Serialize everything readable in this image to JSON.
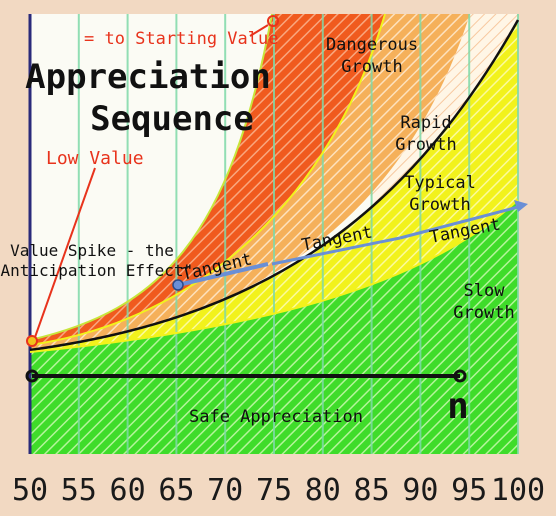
{
  "title": {
    "line1": "Appreciation",
    "line2": "Sequence"
  },
  "annotations": {
    "starting_value": "= to Starting Value",
    "low_value": "Low Value",
    "value_spike_line1": "Value Spike - the",
    "value_spike_line2": "\"Anticipation Effect\"",
    "tangent_1": "Tangent",
    "tangent_2": "Tangent",
    "tangent_3": "Tangent",
    "n_marker": "n"
  },
  "zones": {
    "dangerous_line1": "Dangerous",
    "dangerous_line2": "Growth",
    "rapid_line1": "Rapid",
    "rapid_line2": "Growth",
    "typical_line1": "Typical",
    "typical_line2": "Growth",
    "slow_line1": "Slow",
    "slow_line2": "Growth",
    "safe": "Safe Appreciation"
  },
  "x_axis": {
    "min": 50,
    "max": 100,
    "ticks": [
      "50",
      "55",
      "60",
      "65",
      "70",
      "75",
      "80",
      "85",
      "90",
      "95",
      "100"
    ]
  },
  "colors": {
    "safe_green": "#3fdc2a",
    "yellow": "#f2f21c",
    "orange": "#f5b05a",
    "red_orange": "#f05a1e",
    "annotation_red": "#e8331c",
    "grid": "#7fd9a8",
    "axis_text": "#1a1a1a",
    "tangent_blue": "#6a8fd6"
  }
}
